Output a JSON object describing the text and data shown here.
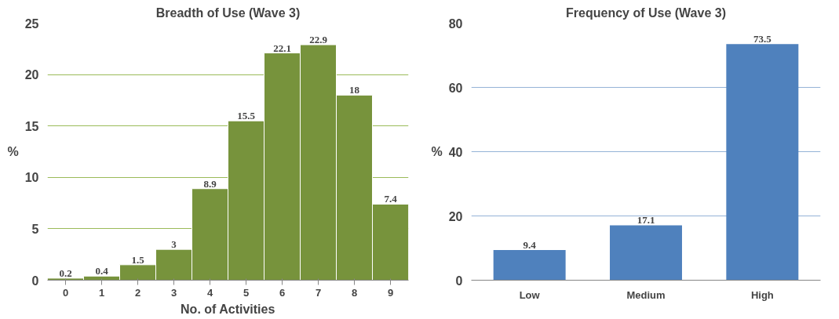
{
  "chart_data": [
    {
      "type": "bar",
      "title": "Breadth of Use (Wave 3)",
      "xlabel": "No. of Activities",
      "ylabel": "%",
      "categories": [
        "0",
        "1",
        "2",
        "3",
        "4",
        "5",
        "6",
        "7",
        "8",
        "9"
      ],
      "values": [
        0.2,
        0.4,
        1.5,
        3,
        8.9,
        15.5,
        22.1,
        22.9,
        18,
        7.4
      ],
      "color": "#77933c",
      "ylim": [
        0,
        25
      ],
      "yticks": [
        0,
        5,
        10,
        15,
        20,
        25
      ],
      "grid": "y",
      "data_labels": true
    },
    {
      "type": "bar",
      "title": "Frequency of Use (Wave 3)",
      "ylabel": "%",
      "categories": [
        "Low",
        "Medium",
        "High"
      ],
      "values": [
        9.4,
        17.1,
        73.5
      ],
      "color": "#4f81bd",
      "ylim": [
        0,
        80
      ],
      "yticks": [
        0,
        20,
        40,
        60,
        80
      ],
      "grid": "y",
      "data_labels": true
    }
  ]
}
